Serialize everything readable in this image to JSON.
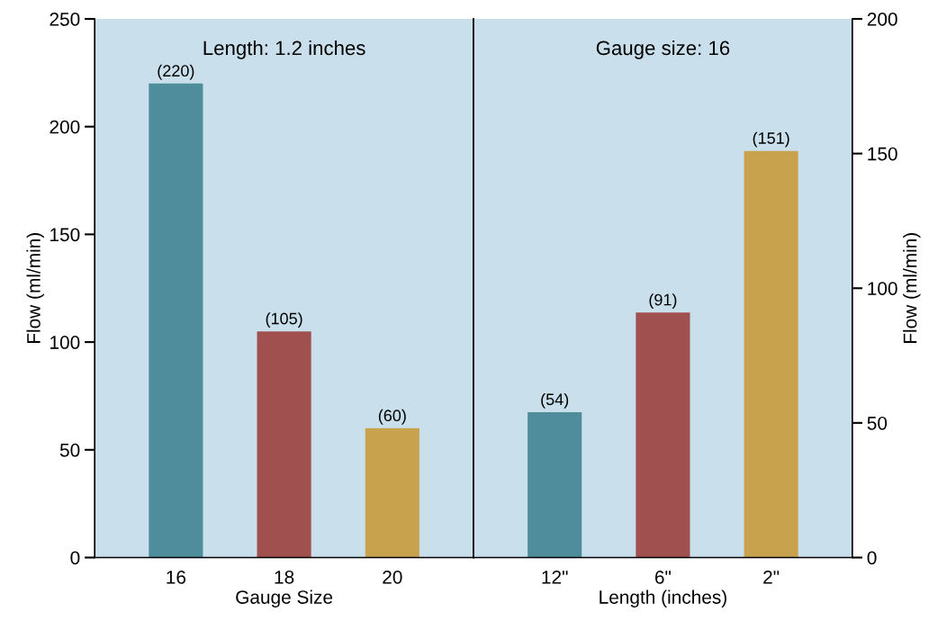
{
  "chart_data": [
    {
      "type": "bar",
      "title": "Length: 1.2 inches",
      "xlabel": "Gauge Size",
      "ylabel": "Flow (ml/min)",
      "categories": [
        "16",
        "18",
        "20"
      ],
      "series": [
        {
          "values": [
            220,
            105,
            60
          ],
          "colors": [
            "#4f8c9c",
            "#a0504f",
            "#c8a24c"
          ],
          "value_labels": [
            "(220)",
            "(105)",
            "(60)"
          ]
        }
      ],
      "ylim": [
        0,
        250
      ],
      "yticks": [
        0,
        50,
        100,
        150,
        200,
        250
      ]
    },
    {
      "type": "bar",
      "title": "Gauge size: 16",
      "xlabel": "Length (inches)",
      "y2label": "Flow (ml/min)",
      "categories": [
        "12\"",
        "6\"",
        "2\""
      ],
      "series": [
        {
          "values": [
            54,
            91,
            151
          ],
          "axis": "y2",
          "colors": [
            "#4f8c9c",
            "#a0504f",
            "#c8a24c"
          ],
          "value_labels": [
            "(54)",
            "(91)",
            "(151)"
          ]
        }
      ],
      "y2lim": [
        0,
        200
      ],
      "y2ticks": [
        0,
        50,
        100,
        150,
        200
      ]
    }
  ]
}
